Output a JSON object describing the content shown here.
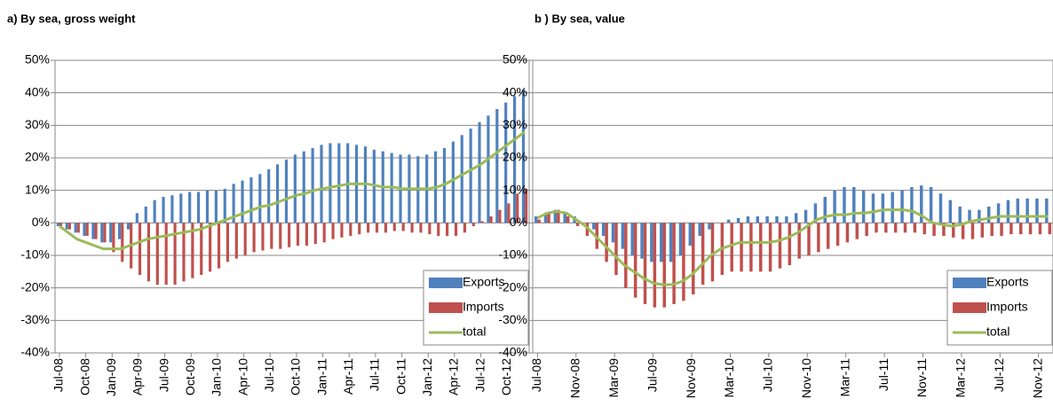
{
  "chart_data": [
    {
      "type": "bar",
      "title": "a) By sea, gross weight",
      "categories": [
        "Jul-08",
        null,
        null,
        "Oct-08",
        null,
        null,
        "Jan-09",
        null,
        null,
        "Apr-09",
        null,
        null,
        "Jul-09",
        null,
        null,
        "Oct-09",
        null,
        null,
        "Jan-10",
        null,
        null,
        "Apr-10",
        null,
        null,
        "Jul-10",
        null,
        null,
        "Oct-10",
        null,
        null,
        "Jan-11",
        null,
        null,
        "Apr-11",
        null,
        null,
        "Jul-11",
        null,
        null,
        "Oct-11",
        null,
        null,
        "Jan-12",
        null,
        null,
        "Apr-12",
        null,
        null,
        "Jul-12",
        null,
        null,
        "Oct-12",
        null,
        null
      ],
      "series": [
        {
          "name": "Exports",
          "type": "bar",
          "color": "#4f81bd",
          "values": [
            -1,
            -2,
            -3,
            -4,
            -5,
            -6,
            -6,
            -5,
            -2,
            3,
            5,
            7,
            8,
            8.5,
            9,
            9.5,
            9.5,
            10,
            10,
            10.5,
            12,
            13,
            14,
            15,
            16.5,
            18,
            19.5,
            21,
            22,
            23,
            24,
            24.5,
            24.5,
            24.5,
            24,
            23.5,
            22.5,
            22,
            21.5,
            21,
            21,
            20.5,
            21,
            22,
            23,
            25,
            27,
            29,
            31,
            33,
            35,
            37,
            39,
            41
          ]
        },
        {
          "name": "Imports",
          "type": "bar",
          "color": "#c0504d",
          "values": [
            -1,
            -2,
            -3,
            -4,
            -5,
            -6,
            -9,
            -12,
            -14,
            -16,
            -18,
            -19,
            -19,
            -19,
            -18,
            -17,
            -16,
            -15,
            -14,
            -12,
            -11,
            -10,
            -9,
            -8.5,
            -8,
            -8,
            -7.5,
            -7,
            -7,
            -6.5,
            -6,
            -5,
            -4.5,
            -4,
            -3.5,
            -3,
            -3,
            -3,
            -2.5,
            -2.5,
            -3,
            -3,
            -3.5,
            -4,
            -4,
            -4,
            -3,
            -1,
            0.5,
            2,
            4,
            6,
            9,
            10.5
          ]
        },
        {
          "name": "total",
          "type": "line",
          "color": "#9bbb59",
          "values": [
            -1,
            -3,
            -5,
            -6,
            -7,
            -8,
            -8,
            -8,
            -7,
            -6,
            -5,
            -4.5,
            -4,
            -3.5,
            -3,
            -2.5,
            -2,
            -1,
            0,
            1,
            2,
            3,
            4,
            5,
            5.5,
            6.5,
            7.5,
            8.5,
            9,
            10,
            10.5,
            11,
            11.5,
            12,
            12,
            12,
            11.5,
            11,
            11,
            10.5,
            10.5,
            10.5,
            10.5,
            11,
            12,
            13.5,
            15,
            16.5,
            18,
            20,
            22,
            24,
            26,
            28
          ]
        }
      ],
      "ylim": [
        -40,
        50
      ],
      "yticks": [
        {
          "value": -40,
          "label": "-40%"
        },
        {
          "value": -30,
          "label": "-30%"
        },
        {
          "value": -20,
          "label": "-20%"
        },
        {
          "value": -10,
          "label": "-10%"
        },
        {
          "value": 0,
          "label": "0%"
        },
        {
          "value": 10,
          "label": "10%"
        },
        {
          "value": 20,
          "label": "20%"
        },
        {
          "value": 30,
          "label": "30%"
        },
        {
          "value": 40,
          "label": "40%"
        },
        {
          "value": 50,
          "label": "50%"
        }
      ],
      "grid": true,
      "legend": "lower right"
    },
    {
      "type": "bar",
      "title": "b ) By sea, value",
      "categories": [
        "Jul-08",
        null,
        null,
        null,
        "Nov-08",
        null,
        null,
        null,
        "Mar-09",
        null,
        null,
        null,
        "Jul-09",
        null,
        null,
        null,
        "Nov-09",
        null,
        null,
        null,
        "Mar-10",
        null,
        null,
        null,
        "Jul-10",
        null,
        null,
        null,
        "Nov-10",
        null,
        null,
        null,
        "Mar-11",
        null,
        null,
        null,
        "Jul-11",
        null,
        null,
        null,
        "Nov-11",
        null,
        null,
        null,
        "Mar-12",
        null,
        null,
        null,
        "Jul-12",
        null,
        null,
        null,
        "Nov-12",
        null
      ],
      "series": [
        {
          "name": "Exports",
          "type": "bar",
          "color": "#4f81bd",
          "values": [
            2,
            3,
            4,
            3,
            2,
            0,
            -2,
            -4,
            -6,
            -8,
            -10,
            -11,
            -12,
            -12,
            -12,
            -10,
            -7,
            -4,
            -2,
            0,
            1,
            1.5,
            2,
            2,
            2,
            2,
            2,
            3,
            4,
            6,
            8,
            10,
            11,
            11,
            10,
            9,
            9,
            9.5,
            10,
            11,
            11.5,
            11,
            9,
            7,
            5,
            4,
            4,
            5,
            6,
            7,
            7.5,
            7.5,
            7.5,
            7.5
          ]
        },
        {
          "name": "Imports",
          "type": "bar",
          "color": "#c0504d",
          "values": [
            1,
            3,
            4,
            2,
            -1,
            -4,
            -8,
            -12,
            -16,
            -20,
            -23,
            -25,
            -26,
            -26,
            -25,
            -24,
            -22,
            -19,
            -18,
            -16,
            -15,
            -15,
            -15,
            -15,
            -15,
            -14,
            -13,
            -11,
            -10,
            -9,
            -8,
            -7,
            -6,
            -5,
            -4,
            -3,
            -3,
            -3,
            -3,
            -3,
            -3.5,
            -4,
            -4,
            -4.5,
            -5,
            -5,
            -4.5,
            -4,
            -4,
            -3.5,
            -3.5,
            -3.5,
            -3.5,
            -3.5
          ]
        },
        {
          "name": "total",
          "type": "line",
          "color": "#9bbb59",
          "values": [
            1.5,
            3,
            3.5,
            3,
            1,
            -1,
            -4,
            -7,
            -10,
            -13,
            -15,
            -17,
            -18.5,
            -19,
            -19,
            -18,
            -16,
            -13,
            -10,
            -8,
            -7,
            -6,
            -6,
            -6,
            -6,
            -5.5,
            -4.5,
            -3,
            -1,
            1,
            2,
            2.5,
            2.5,
            3,
            3,
            3.5,
            4,
            4,
            4,
            3.5,
            2,
            0,
            -0.5,
            -1,
            -0.5,
            0.5,
            1,
            1.5,
            2,
            2,
            2,
            2,
            2,
            2
          ]
        }
      ],
      "ylim": [
        -40,
        50
      ],
      "yticks": [
        {
          "value": -40,
          "label": "-40%"
        },
        {
          "value": -30,
          "label": "-30%"
        },
        {
          "value": -20,
          "label": "-20%"
        },
        {
          "value": -10,
          "label": "-10%"
        },
        {
          "value": 0,
          "label": "0%"
        },
        {
          "value": 10,
          "label": "10%"
        },
        {
          "value": 20,
          "label": "20%"
        },
        {
          "value": 30,
          "label": "30%"
        },
        {
          "value": 40,
          "label": "40%"
        },
        {
          "value": 50,
          "label": "50%"
        }
      ],
      "grid": true,
      "legend": "lower right"
    }
  ]
}
